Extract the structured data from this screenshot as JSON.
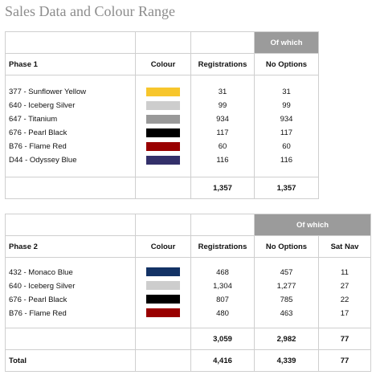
{
  "title": "Sales Data and Colour Range",
  "phase1": {
    "of_which": "Of which",
    "headers": {
      "phase": "Phase 1",
      "colour": "Colour",
      "registrations": "Registrations",
      "no_options": "No Options"
    },
    "rows": [
      {
        "name": "377 - Sunflower Yellow",
        "color": "#f7c62c",
        "registrations": "31",
        "no_options": "31"
      },
      {
        "name": "640 - Iceberg Silver",
        "color": "#cdcdcd",
        "registrations": "99",
        "no_options": "99"
      },
      {
        "name": "647 - Titanium",
        "color": "#999999",
        "registrations": "934",
        "no_options": "934"
      },
      {
        "name": "676 - Pearl Black",
        "color": "#000000",
        "registrations": "117",
        "no_options": "117"
      },
      {
        "name": "B76 - Flame Red",
        "color": "#990000",
        "registrations": "60",
        "no_options": "60"
      },
      {
        "name": "D44 - Odyssey Blue",
        "color": "#33306a",
        "registrations": "116",
        "no_options": "116"
      }
    ],
    "totals": {
      "registrations": "1,357",
      "no_options": "1,357"
    }
  },
  "phase2": {
    "of_which": "Of which",
    "headers": {
      "phase": "Phase 2",
      "colour": "Colour",
      "registrations": "Registrations",
      "no_options": "No Options",
      "sat_nav": "Sat Nav"
    },
    "rows": [
      {
        "name": "432 - Monaco Blue",
        "color": "#133265",
        "registrations": "468",
        "no_options": "457",
        "sat_nav": "11"
      },
      {
        "name": "640 - Iceberg Silver",
        "color": "#cdcdcd",
        "registrations": "1,304",
        "no_options": "1,277",
        "sat_nav": "27"
      },
      {
        "name": "676 - Pearl Black",
        "color": "#000000",
        "registrations": "807",
        "no_options": "785",
        "sat_nav": "22"
      },
      {
        "name": "B76 - Flame Red",
        "color": "#990000",
        "registrations": "480",
        "no_options": "463",
        "sat_nav": "17"
      }
    ],
    "totals": {
      "registrations": "3,059",
      "no_options": "2,982",
      "sat_nav": "77"
    },
    "grand_total": {
      "label": "Total",
      "registrations": "4,416",
      "no_options": "4,339",
      "sat_nav": "77"
    }
  }
}
